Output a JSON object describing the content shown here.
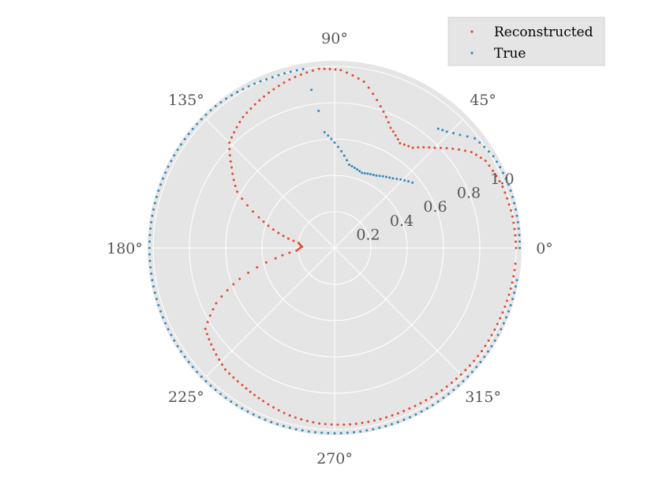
{
  "chart_data": {
    "type": "scatter",
    "projection": "polar",
    "theta_ticks_deg": [
      0,
      45,
      90,
      135,
      180,
      225,
      270,
      315
    ],
    "theta_tick_labels": [
      "0°",
      "45°",
      "90°",
      "135°",
      "180°",
      "225°",
      "270°",
      "315°"
    ],
    "r_ticks": [
      0.2,
      0.4,
      0.6,
      0.8,
      1.0
    ],
    "r_tick_labels": [
      "0.2",
      "0.4",
      "0.6",
      "0.8",
      "1.0"
    ],
    "r_tick_label_angle_deg": 22.5,
    "rlim": [
      0,
      1.0
    ],
    "grid": true,
    "legend_position": "top-right",
    "colors": {
      "Reconstructed": "#E24A33",
      "True": "#348ABD",
      "plot_bg": "#E5E5E5",
      "grid": "#FFFFFF"
    },
    "series": [
      {
        "name": "Reconstructed",
        "color": "#E24A33",
        "points": [
          {
            "theta": 0,
            "r": 1.0
          },
          {
            "theta": 10,
            "r": 0.995
          },
          {
            "theta": 20,
            "r": 0.985
          },
          {
            "theta": 30,
            "r": 0.96
          },
          {
            "theta": 35,
            "r": 0.92
          },
          {
            "theta": 40,
            "r": 0.85
          },
          {
            "theta": 45,
            "r": 0.78
          },
          {
            "theta": 52,
            "r": 0.7
          },
          {
            "theta": 58,
            "r": 0.68
          },
          {
            "theta": 65,
            "r": 0.73
          },
          {
            "theta": 72,
            "r": 0.82
          },
          {
            "theta": 80,
            "r": 0.93
          },
          {
            "theta": 88,
            "r": 0.98
          },
          {
            "theta": 95,
            "r": 0.99
          },
          {
            "theta": 105,
            "r": 0.96
          },
          {
            "theta": 115,
            "r": 0.92
          },
          {
            "theta": 125,
            "r": 0.88
          },
          {
            "theta": 135,
            "r": 0.82
          },
          {
            "theta": 142,
            "r": 0.72
          },
          {
            "theta": 150,
            "r": 0.62
          },
          {
            "theta": 158,
            "r": 0.45
          },
          {
            "theta": 165,
            "r": 0.32
          },
          {
            "theta": 172,
            "r": 0.2
          },
          {
            "theta": 178,
            "r": 0.18
          },
          {
            "theta": 184,
            "r": 0.21
          },
          {
            "theta": 190,
            "r": 0.33
          },
          {
            "theta": 198,
            "r": 0.55
          },
          {
            "theta": 205,
            "r": 0.72
          },
          {
            "theta": 212,
            "r": 0.84
          },
          {
            "theta": 220,
            "r": 0.87
          },
          {
            "theta": 228,
            "r": 0.9
          },
          {
            "theta": 236,
            "r": 0.91
          },
          {
            "theta": 245,
            "r": 0.93
          },
          {
            "theta": 255,
            "r": 0.955
          },
          {
            "theta": 265,
            "r": 0.97
          },
          {
            "theta": 275,
            "r": 0.975
          },
          {
            "theta": 285,
            "r": 0.975
          },
          {
            "theta": 295,
            "r": 0.975
          },
          {
            "theta": 305,
            "r": 0.98
          },
          {
            "theta": 315,
            "r": 0.985
          },
          {
            "theta": 325,
            "r": 0.99
          },
          {
            "theta": 335,
            "r": 0.99
          },
          {
            "theta": 345,
            "r": 0.995
          },
          {
            "theta": 355,
            "r": 1.0
          }
        ]
      },
      {
        "name": "True",
        "color": "#348ABD",
        "points": [
          {
            "theta": 0,
            "r": 1.02
          },
          {
            "theta": 10,
            "r": 1.02
          },
          {
            "theta": 20,
            "r": 1.02
          },
          {
            "theta": 30,
            "r": 1.01
          },
          {
            "theta": 38,
            "r": 0.98
          },
          {
            "theta": 42,
            "r": 0.93
          },
          {
            "theta": 46,
            "r": 0.89
          },
          {
            "theta": 49,
            "r": 0.87
          },
          {
            "theta": 40,
            "r": 0.56
          },
          {
            "theta": 50,
            "r": 0.5
          },
          {
            "theta": 60,
            "r": 0.46
          },
          {
            "theta": 70,
            "r": 0.44
          },
          {
            "theta": 80,
            "r": 0.465
          },
          {
            "theta": 90,
            "r": 0.58
          },
          {
            "theta": 95,
            "r": 0.64
          },
          {
            "theta": 100,
            "r": 1.0
          },
          {
            "theta": 110,
            "r": 1.0
          },
          {
            "theta": 120,
            "r": 1.01
          },
          {
            "theta": 130,
            "r": 1.02
          },
          {
            "theta": 140,
            "r": 1.02
          },
          {
            "theta": 150,
            "r": 1.02
          },
          {
            "theta": 160,
            "r": 1.02
          },
          {
            "theta": 170,
            "r": 1.02
          },
          {
            "theta": 180,
            "r": 1.02
          },
          {
            "theta": 190,
            "r": 1.02
          },
          {
            "theta": 200,
            "r": 1.02
          },
          {
            "theta": 210,
            "r": 1.02
          },
          {
            "theta": 220,
            "r": 1.02
          },
          {
            "theta": 230,
            "r": 1.02
          },
          {
            "theta": 240,
            "r": 1.02
          },
          {
            "theta": 250,
            "r": 1.02
          },
          {
            "theta": 260,
            "r": 1.02
          },
          {
            "theta": 270,
            "r": 1.02
          },
          {
            "theta": 280,
            "r": 1.02
          },
          {
            "theta": 290,
            "r": 1.02
          },
          {
            "theta": 300,
            "r": 1.02
          },
          {
            "theta": 310,
            "r": 1.02
          },
          {
            "theta": 320,
            "r": 1.02
          },
          {
            "theta": 330,
            "r": 1.02
          },
          {
            "theta": 340,
            "r": 1.02
          },
          {
            "theta": 350,
            "r": 1.02
          }
        ]
      }
    ]
  }
}
